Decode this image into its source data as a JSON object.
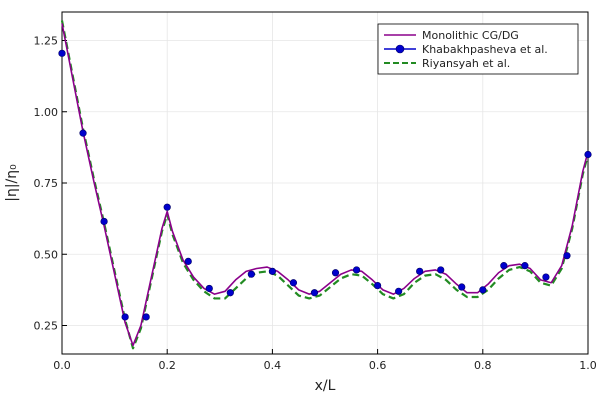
{
  "chart_data": {
    "type": "line",
    "title": "",
    "xlabel": "x/L",
    "ylabel": "|η|/η₀",
    "xlim": [
      0,
      1
    ],
    "ylim": [
      0.15,
      1.35
    ],
    "grid": true,
    "legend_position": "top-right",
    "x_ticks": [
      0.0,
      0.2,
      0.4,
      0.6,
      0.8,
      1.0
    ],
    "x_tick_labels": [
      "0.0",
      "0.2",
      "0.4",
      "0.6",
      "0.8",
      "1.0"
    ],
    "y_ticks": [
      0.25,
      0.5,
      0.75,
      1.0,
      1.25
    ],
    "y_tick_labels": [
      "0.25",
      "0.50",
      "0.75",
      "1.00",
      "1.25"
    ],
    "series": [
      {
        "name": "Monolithic CG/DG",
        "style": "solid",
        "color": "#8b008b",
        "x": [
          0.0,
          0.02,
          0.04,
          0.06,
          0.08,
          0.1,
          0.12,
          0.135,
          0.15,
          0.17,
          0.19,
          0.2,
          0.21,
          0.23,
          0.25,
          0.27,
          0.29,
          0.31,
          0.33,
          0.35,
          0.37,
          0.39,
          0.41,
          0.43,
          0.45,
          0.47,
          0.49,
          0.51,
          0.53,
          0.55,
          0.57,
          0.59,
          0.61,
          0.63,
          0.65,
          0.67,
          0.69,
          0.71,
          0.73,
          0.75,
          0.77,
          0.79,
          0.81,
          0.83,
          0.85,
          0.87,
          0.89,
          0.91,
          0.93,
          0.95,
          0.97,
          0.99,
          1.0
        ],
        "y": [
          1.31,
          1.12,
          0.93,
          0.76,
          0.6,
          0.43,
          0.26,
          0.18,
          0.25,
          0.42,
          0.59,
          0.65,
          0.58,
          0.48,
          0.42,
          0.38,
          0.36,
          0.37,
          0.41,
          0.44,
          0.45,
          0.455,
          0.44,
          0.41,
          0.375,
          0.36,
          0.37,
          0.4,
          0.43,
          0.445,
          0.44,
          0.41,
          0.375,
          0.36,
          0.38,
          0.415,
          0.44,
          0.445,
          0.43,
          0.395,
          0.365,
          0.365,
          0.395,
          0.435,
          0.46,
          0.465,
          0.45,
          0.41,
          0.4,
          0.46,
          0.6,
          0.79,
          0.86
        ]
      },
      {
        "name": "Khabakhpasheva et al.",
        "style": "markers-line",
        "color": "#0000cc",
        "x": [
          0.0,
          0.04,
          0.08,
          0.12,
          0.16,
          0.2,
          0.24,
          0.28,
          0.32,
          0.36,
          0.4,
          0.44,
          0.48,
          0.52,
          0.56,
          0.6,
          0.64,
          0.68,
          0.72,
          0.76,
          0.8,
          0.84,
          0.88,
          0.92,
          0.96,
          1.0
        ],
        "y": [
          1.205,
          0.925,
          0.615,
          0.28,
          0.28,
          0.665,
          0.475,
          0.38,
          0.365,
          0.43,
          0.44,
          0.4,
          0.365,
          0.435,
          0.445,
          0.39,
          0.37,
          0.44,
          0.445,
          0.385,
          0.375,
          0.46,
          0.46,
          0.42,
          0.495,
          0.85
        ]
      },
      {
        "name": "Riyansyah et al.",
        "style": "dashed",
        "color": "#228b22",
        "x": [
          0.0,
          0.02,
          0.04,
          0.06,
          0.08,
          0.1,
          0.12,
          0.135,
          0.15,
          0.17,
          0.19,
          0.2,
          0.21,
          0.23,
          0.25,
          0.27,
          0.29,
          0.31,
          0.33,
          0.35,
          0.37,
          0.39,
          0.41,
          0.43,
          0.45,
          0.47,
          0.49,
          0.51,
          0.53,
          0.55,
          0.57,
          0.59,
          0.61,
          0.63,
          0.65,
          0.67,
          0.69,
          0.71,
          0.73,
          0.75,
          0.77,
          0.79,
          0.81,
          0.83,
          0.85,
          0.87,
          0.89,
          0.91,
          0.93,
          0.95,
          0.97,
          0.99,
          1.0
        ],
        "y": [
          1.32,
          1.13,
          0.94,
          0.77,
          0.61,
          0.44,
          0.27,
          0.17,
          0.24,
          0.41,
          0.58,
          0.64,
          0.57,
          0.47,
          0.41,
          0.37,
          0.345,
          0.345,
          0.38,
          0.415,
          0.435,
          0.44,
          0.425,
          0.39,
          0.355,
          0.345,
          0.355,
          0.385,
          0.415,
          0.43,
          0.425,
          0.395,
          0.36,
          0.345,
          0.36,
          0.4,
          0.425,
          0.43,
          0.41,
          0.375,
          0.35,
          0.35,
          0.375,
          0.415,
          0.445,
          0.455,
          0.44,
          0.4,
          0.39,
          0.45,
          0.59,
          0.78,
          0.85
        ]
      }
    ]
  }
}
